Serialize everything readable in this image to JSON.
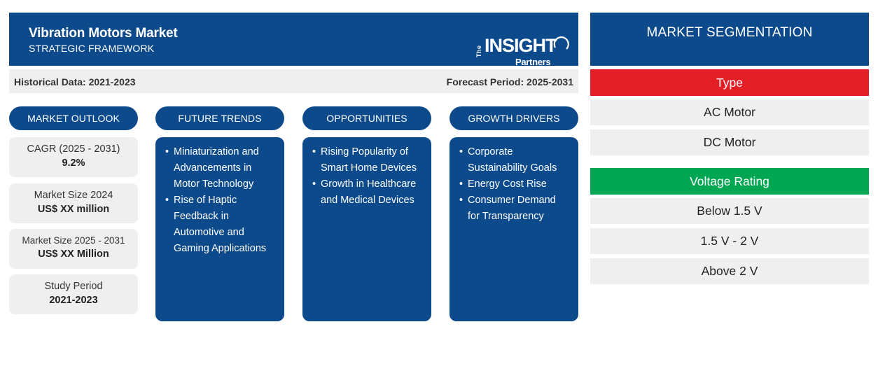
{
  "header": {
    "title": "Vibration Motors Market",
    "subtitle": "STRATEGIC FRAMEWORK",
    "logo": {
      "the": "The",
      "insight": "INSIGHT",
      "partners": "Partners"
    }
  },
  "period_bar": {
    "historical": "Historical Data: 2021-2023",
    "forecast": "Forecast Period: 2025-2031"
  },
  "market_outlook": {
    "heading": "MARKET OUTLOOK",
    "stats": [
      {
        "label": "CAGR (2025 - 2031)",
        "value": "9.2%"
      },
      {
        "label": "Market Size 2024",
        "value": "US$ XX million"
      },
      {
        "label": "Market Size 2025 - 2031",
        "value": "US$ XX Million"
      },
      {
        "label": "Study Period",
        "value": "2021-2023"
      }
    ]
  },
  "future_trends": {
    "heading": "FUTURE TRENDS",
    "items": [
      [
        "Miniaturization and",
        "Advancements in",
        "Motor Technology"
      ],
      [
        "Rise of Haptic",
        "Feedback in",
        "Automotive and",
        "Gaming Applications"
      ]
    ]
  },
  "opportunities": {
    "heading": "OPPORTUNITIES",
    "items": [
      [
        "Rising Popularity of",
        "Smart Home Devices"
      ],
      [
        "Growth in Healthcare",
        "and Medical Devices"
      ]
    ]
  },
  "growth_drivers": {
    "heading": "GROWTH DRIVERS",
    "items": [
      [
        "Corporate",
        "Sustainability Goals"
      ],
      [
        "Energy Cost Rise"
      ],
      [
        "Consumer Demand",
        "for Transparency"
      ]
    ]
  },
  "segmentation": {
    "title": "MARKET SEGMENTATION",
    "groups": [
      {
        "name": "Type",
        "color": "#e31e24",
        "items": [
          "AC Motor",
          "DC Motor"
        ]
      },
      {
        "name": "Voltage Rating",
        "color": "#00a651",
        "items": [
          "Below 1.5 V",
          "1.5 V - 2 V",
          "Above 2 V"
        ]
      }
    ]
  },
  "colors": {
    "navy": "#0c4a8c",
    "light_gray": "#efefef",
    "type_red": "#e31e24",
    "voltage_green": "#00a651"
  }
}
